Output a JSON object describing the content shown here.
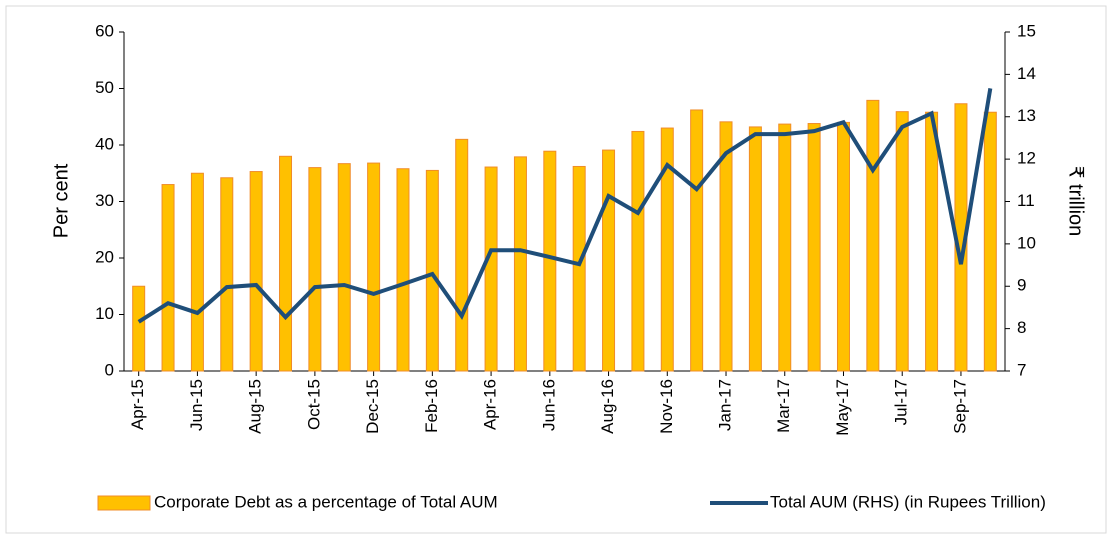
{
  "chart_data": {
    "type": "bar_line",
    "y_label": "Per cent",
    "y2_label": "₹ trillion",
    "categories": [
      "Apr-15",
      null,
      "Jun-15",
      null,
      "Aug-15",
      null,
      "Oct-15",
      null,
      "Dec-15",
      null,
      "Feb-16",
      null,
      "Apr-16",
      null,
      "Jun-16",
      null,
      "Aug-16",
      null,
      "Nov-16",
      null,
      "Jan-17",
      null,
      "Mar-17",
      null,
      "May-17",
      null,
      "Jul-17",
      null,
      "Sep-17",
      null
    ],
    "series": [
      {
        "name": "Corporate Debt as a percentage of Total AUM",
        "type": "bar",
        "color": "#FFC000",
        "edge": "#F08C28",
        "values": [
          15,
          33,
          35,
          34.2,
          35.3,
          38,
          36,
          36.7,
          36.8,
          35.8,
          35.5,
          41,
          36.1,
          37.9,
          38.9,
          36.2,
          39.1,
          42.4,
          43,
          46.2,
          44.1,
          43.2,
          43.7,
          43.8,
          44,
          47.9,
          45.9,
          45.8,
          47.3,
          45.8
        ]
      },
      {
        "name": "Total AUM (RHS) (in Rupees Trillion)",
        "type": "line",
        "axis": "y2",
        "color": "#1F4E79",
        "values": [
          8.16,
          8.6,
          8.37,
          8.98,
          9.03,
          8.27,
          8.98,
          9.03,
          8.82,
          9.05,
          9.29,
          8.3,
          9.85,
          9.85,
          9.69,
          9.52,
          11.13,
          10.73,
          11.86,
          11.29,
          12.14,
          12.59,
          12.59,
          12.66,
          12.87,
          11.74,
          12.76,
          13.08,
          9.52,
          13.67
        ]
      }
    ],
    "ylim": [
      0,
      60
    ],
    "yticks": [
      0,
      10,
      20,
      30,
      40,
      50,
      60
    ],
    "y2lim": [
      7,
      15
    ],
    "y2ticks": [
      7,
      8,
      9,
      10,
      11,
      12,
      13,
      14,
      15
    ]
  }
}
